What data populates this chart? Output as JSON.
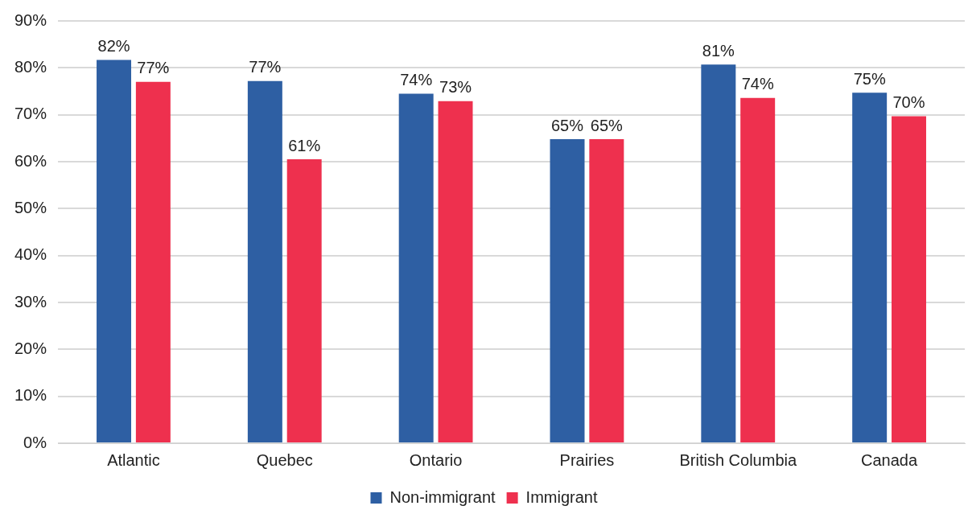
{
  "chart_data": {
    "type": "bar",
    "categories": [
      "Atlantic",
      "Quebec",
      "Ontario",
      "Prairies",
      "British Columbia",
      "Canada"
    ],
    "series": [
      {
        "name": "Non-immigrant",
        "color": "#2e5fa3",
        "values": [
          81.7,
          77.2,
          74.5,
          64.8,
          80.7,
          74.7
        ],
        "value_labels": [
          "82%",
          "77%",
          "74%",
          "65%",
          "81%",
          "75%"
        ]
      },
      {
        "name": "Immigrant",
        "color": "#ee304e",
        "values": [
          77,
          60.5,
          72.9,
          64.8,
          73.6,
          69.7
        ],
        "value_labels": [
          "77%",
          "61%",
          "73%",
          "65%",
          "74%",
          "70%"
        ]
      }
    ],
    "ylim": [
      0,
      90
    ],
    "yticks": [
      {
        "value": 0,
        "label": "0%"
      },
      {
        "value": 10,
        "label": "10%"
      },
      {
        "value": 20,
        "label": "20%"
      },
      {
        "value": 30,
        "label": "30%"
      },
      {
        "value": 40,
        "label": "40%"
      },
      {
        "value": 50,
        "label": "50%"
      },
      {
        "value": 60,
        "label": "60%"
      },
      {
        "value": 70,
        "label": "70%"
      },
      {
        "value": 80,
        "label": "80%"
      },
      {
        "value": 90,
        "label": "90%"
      }
    ],
    "grid": "y",
    "legend": "bottom"
  }
}
